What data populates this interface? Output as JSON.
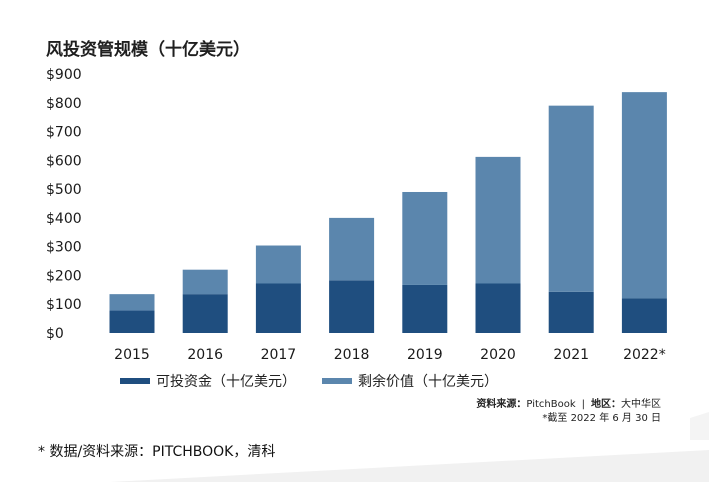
{
  "colors": {
    "invested": "#1f4e7f",
    "remaining": "#5b86ad",
    "axis_text": "#1a1a1a",
    "deco_gray": "#ececec"
  },
  "chart_data": {
    "type": "bar",
    "stacked": true,
    "title": "风投资管规模（十亿美元）",
    "categories": [
      "2015",
      "2016",
      "2017",
      "2018",
      "2019",
      "2020",
      "2021",
      "2022*"
    ],
    "series": [
      {
        "name": "可投资金（十亿美元）",
        "values": [
          78,
          135,
          172,
          183,
          167,
          172,
          143,
          120
        ]
      },
      {
        "name": "剩余价值（十亿美元）",
        "values": [
          57,
          85,
          132,
          217,
          323,
          440,
          647,
          717
        ]
      }
    ],
    "y_ticks": [
      "$0",
      "$100",
      "$200",
      "$300",
      "$400",
      "$500",
      "$600",
      "$700",
      "$800",
      "$900"
    ],
    "ylim": [
      0,
      900
    ],
    "grid": false,
    "legend_position": "bottom-left"
  },
  "source": {
    "label": "资料来源：",
    "value": "PitchBook",
    "separator": "|",
    "region_label": "地区：",
    "region_value": "大中华区",
    "note": "*截至 2022 年 6 月 30 日"
  },
  "footnote": "* 数据/资料来源：PITCHBOOK，清科"
}
